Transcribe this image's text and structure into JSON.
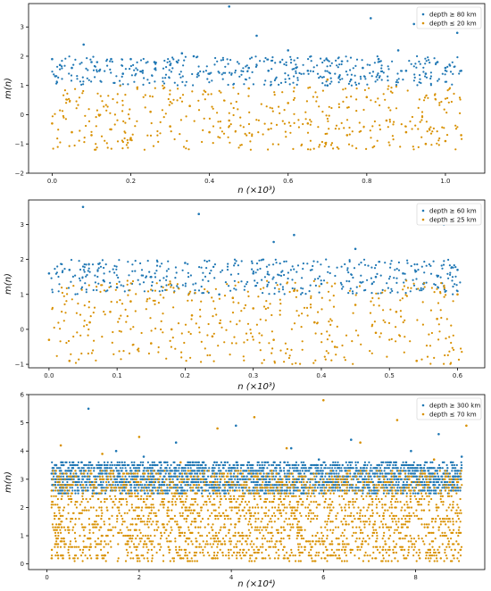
{
  "chart_data": [
    {
      "type": "scatter",
      "title": "",
      "xlabel": "n (×10³)",
      "ylabel": "m(n)",
      "xlim": [
        -0.06,
        1.1
      ],
      "ylim": [
        -2,
        3.8
      ],
      "x_ticks": [
        0.0,
        0.2,
        0.4,
        0.6,
        0.8,
        1.0
      ],
      "x_tick_labels": [
        "0.0",
        "0.2",
        "0.4",
        "0.6",
        "0.8",
        "1.0"
      ],
      "y_ticks": [
        -2,
        -1,
        0,
        1,
        2,
        3
      ],
      "y_tick_labels": [
        "−2",
        "−1",
        "0",
        "1",
        "2",
        "3"
      ],
      "legend_placement": "top-right",
      "series": [
        {
          "name": "depth ≥ 80 km",
          "color": "#1f77b4",
          "x": [
            0.0,
            0.02,
            0.05,
            0.08,
            0.1,
            0.12,
            0.15,
            0.18,
            0.2,
            0.23,
            0.26,
            0.3,
            0.33,
            0.36,
            0.4,
            0.45,
            0.5,
            0.52,
            0.55,
            0.58,
            0.6,
            0.62,
            0.65,
            0.7,
            0.73,
            0.76,
            0.79,
            0.81,
            0.83,
            0.88,
            0.9,
            0.92,
            0.95,
            0.98,
            1.0,
            1.03,
            1.04
          ],
          "y": [
            1.9,
            1.7,
            1.6,
            2.4,
            1.8,
            1.5,
            1.9,
            1.4,
            1.9,
            1.5,
            1.8,
            1.7,
            2.1,
            2.0,
            1.4,
            3.7,
            1.6,
            2.7,
            1.5,
            1.8,
            2.2,
            1.6,
            1.5,
            1.0,
            1.3,
            1.2,
            1.6,
            3.3,
            1.9,
            2.2,
            1.5,
            3.1,
            1.4,
            1.8,
            1.6,
            2.8,
            1.5
          ],
          "band": [
            1.0,
            2.0
          ]
        },
        {
          "name": "depth ≤ 20 km",
          "color": "#d89000",
          "x": [
            0.0,
            0.05,
            0.1,
            0.15,
            0.2,
            0.25,
            0.3,
            0.35,
            0.4,
            0.45,
            0.5,
            0.55,
            0.6,
            0.65,
            0.7,
            0.75,
            0.8,
            0.85,
            0.9,
            0.95,
            1.0,
            1.04
          ],
          "y": [
            -0.3,
            -0.6,
            -0.7,
            -0.5,
            -0.8,
            0.1,
            -0.4,
            0.3,
            -0.6,
            -0.2,
            0.9,
            -0.5,
            0.4,
            -0.3,
            1.2,
            -0.7,
            0.6,
            -0.2,
            -0.6,
            -1.0,
            -0.9,
            -0.7
          ],
          "band": [
            -1.2,
            1.0
          ]
        }
      ]
    },
    {
      "type": "scatter",
      "title": "",
      "xlabel": "n (×10³)",
      "ylabel": "m(n)",
      "xlim": [
        -0.03,
        0.64
      ],
      "ylim": [
        -1.1,
        3.7
      ],
      "x_ticks": [
        0.0,
        0.1,
        0.2,
        0.3,
        0.4,
        0.5,
        0.6
      ],
      "x_tick_labels": [
        "0.0",
        "0.1",
        "0.2",
        "0.3",
        "0.4",
        "0.5",
        "0.6"
      ],
      "y_ticks": [
        -1,
        0,
        1,
        2,
        3
      ],
      "y_tick_labels": [
        "−1",
        "0",
        "1",
        "2",
        "3"
      ],
      "legend_placement": "top-right",
      "series": [
        {
          "name": "depth ≥ 60 km",
          "color": "#1f77b4",
          "x": [
            0.0,
            0.03,
            0.05,
            0.08,
            0.1,
            0.15,
            0.2,
            0.22,
            0.25,
            0.3,
            0.33,
            0.36,
            0.4,
            0.45,
            0.48,
            0.52,
            0.55,
            0.58,
            0.6
          ],
          "y": [
            1.6,
            1.7,
            3.5,
            1.4,
            1.2,
            1.5,
            1.9,
            3.3,
            1.0,
            1.6,
            2.5,
            2.7,
            1.3,
            2.3,
            1.5,
            1.6,
            1.3,
            3.0,
            1.7
          ],
          "band": [
            1.0,
            2.0
          ]
        },
        {
          "name": "depth ≤ 25 km",
          "color": "#d89000",
          "x": [
            0.0,
            0.03,
            0.06,
            0.09,
            0.12,
            0.15,
            0.18,
            0.21,
            0.24,
            0.27,
            0.3,
            0.33,
            0.36,
            0.39,
            0.42,
            0.45,
            0.48,
            0.51,
            0.54,
            0.57,
            0.6
          ],
          "y": [
            -0.3,
            -0.9,
            0.2,
            0.5,
            0.8,
            -0.4,
            0.0,
            0.4,
            -0.2,
            0.9,
            0.6,
            -0.3,
            1.1,
            0.2,
            -0.5,
            0.7,
            -0.1,
            0.5,
            -0.9,
            0.3,
            1.0
          ],
          "band": [
            -1.0,
            1.4
          ]
        }
      ]
    },
    {
      "type": "scatter",
      "title": "",
      "xlabel": "n (×10⁴)",
      "ylabel": "m(n)",
      "xlim": [
        -0.4,
        9.5
      ],
      "ylim": [
        -0.2,
        6.0
      ],
      "x_ticks": [
        0,
        2,
        4,
        6,
        8
      ],
      "x_tick_labels": [
        "0",
        "2",
        "4",
        "6",
        "8"
      ],
      "y_ticks": [
        0,
        1,
        2,
        3,
        4,
        5,
        6
      ],
      "y_tick_labels": [
        "0",
        "1",
        "2",
        "3",
        "4",
        "5",
        "6"
      ],
      "legend_placement": "top-right",
      "series": [
        {
          "name": "depth ≥ 300 km",
          "color": "#1f77b4",
          "x": [
            0.2,
            0.9,
            1.5,
            2.1,
            2.8,
            3.4,
            4.1,
            4.7,
            5.3,
            5.9,
            6.6,
            7.2,
            7.9,
            8.5,
            9.0
          ],
          "y": [
            3.5,
            5.5,
            4.0,
            3.8,
            4.3,
            3.6,
            4.9,
            3.4,
            4.1,
            3.7,
            4.4,
            3.5,
            4.0,
            4.6,
            3.8
          ],
          "band": [
            2.5,
            3.6
          ]
        },
        {
          "name": "depth ≤ 70 km",
          "color": "#d89000",
          "x": [
            0.3,
            1.2,
            2.0,
            2.9,
            3.7,
            4.5,
            5.2,
            6.0,
            6.8,
            7.6,
            8.4,
            9.1
          ],
          "y": [
            4.2,
            3.9,
            4.5,
            3.6,
            4.8,
            5.2,
            4.1,
            5.8,
            4.3,
            5.1,
            3.7,
            4.9
          ],
          "band": [
            0.1,
            3.3
          ]
        }
      ]
    }
  ]
}
